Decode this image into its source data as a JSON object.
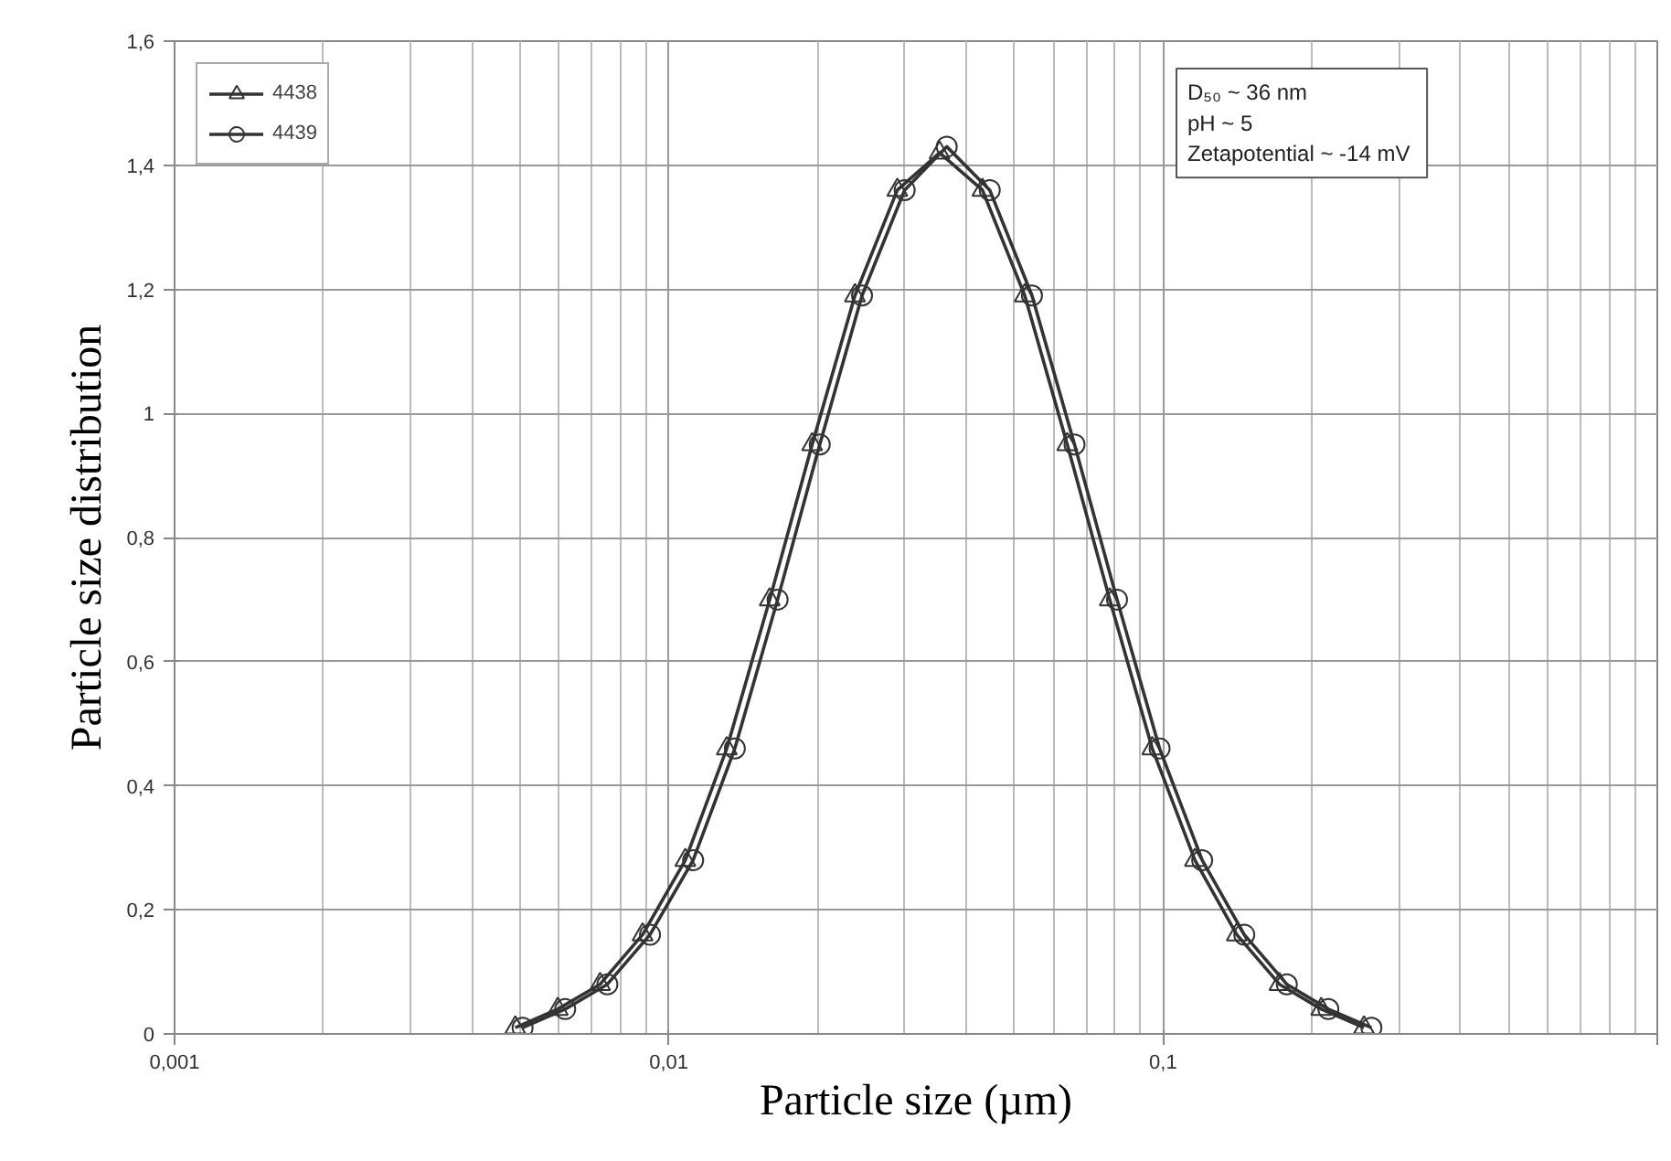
{
  "chart_data": {
    "type": "line",
    "xlabel": "Particle size (µm)",
    "ylabel": "Particle size distribution",
    "xlim": [
      0.001,
      1
    ],
    "xticks": [
      {
        "value": 0.001,
        "label": "0,001"
      },
      {
        "value": 0.01,
        "label": "0,01"
      },
      {
        "value": 0.1,
        "label": "0,1"
      },
      {
        "value": 1,
        "label": null
      }
    ],
    "ylim": [
      0,
      1.6
    ],
    "yticks": [
      0,
      {
        "value": 0.2,
        "label": "0,2"
      },
      {
        "value": 0.4,
        "label": "0,4"
      },
      {
        "value": 0.6,
        "label": "0,6"
      },
      {
        "value": 0.8,
        "label": "0,8"
      },
      1,
      {
        "value": 1.2,
        "label": "1,2"
      },
      {
        "value": 1.4,
        "label": "1,4"
      },
      {
        "value": 1.6,
        "label": "1,6"
      }
    ],
    "log": "x",
    "grid": true,
    "legend": "top left",
    "annotations": [
      "D₅₀ ~ 36 nm",
      "pH ~ 5",
      "Zetapotential  ~ -14 mV"
    ],
    "series": [
      {
        "name": "4438",
        "color": "#333333",
        "marker": "triangle",
        "x": [
          0.00489,
          0.00596,
          0.00726,
          0.00885,
          0.0108,
          0.0131,
          0.016,
          0.0195,
          0.0238,
          0.029,
          0.0353,
          0.0431,
          0.0525,
          0.064,
          0.078,
          0.0951,
          0.116,
          0.141,
          0.172,
          0.209,
          0.255
        ],
        "values": [
          0.01,
          0.04,
          0.08,
          0.16,
          0.28,
          0.46,
          0.7,
          0.95,
          1.19,
          1.36,
          1.42,
          1.36,
          1.19,
          0.95,
          0.7,
          0.46,
          0.28,
          0.16,
          0.08,
          0.04,
          0.01
        ]
      },
      {
        "name": "4439",
        "color": "#333333",
        "marker": "circle",
        "x": [
          0.00506,
          0.00617,
          0.00751,
          0.00916,
          0.0112,
          0.0136,
          0.0166,
          0.0202,
          0.0246,
          0.03,
          0.0365,
          0.0446,
          0.0543,
          0.0662,
          0.0807,
          0.0984,
          0.12,
          0.146,
          0.178,
          0.216,
          0.264
        ],
        "values": [
          0.01,
          0.04,
          0.08,
          0.16,
          0.28,
          0.46,
          0.7,
          0.95,
          1.19,
          1.36,
          1.43,
          1.36,
          1.19,
          0.95,
          0.7,
          0.46,
          0.28,
          0.16,
          0.08,
          0.04,
          0.01
        ]
      }
    ]
  }
}
